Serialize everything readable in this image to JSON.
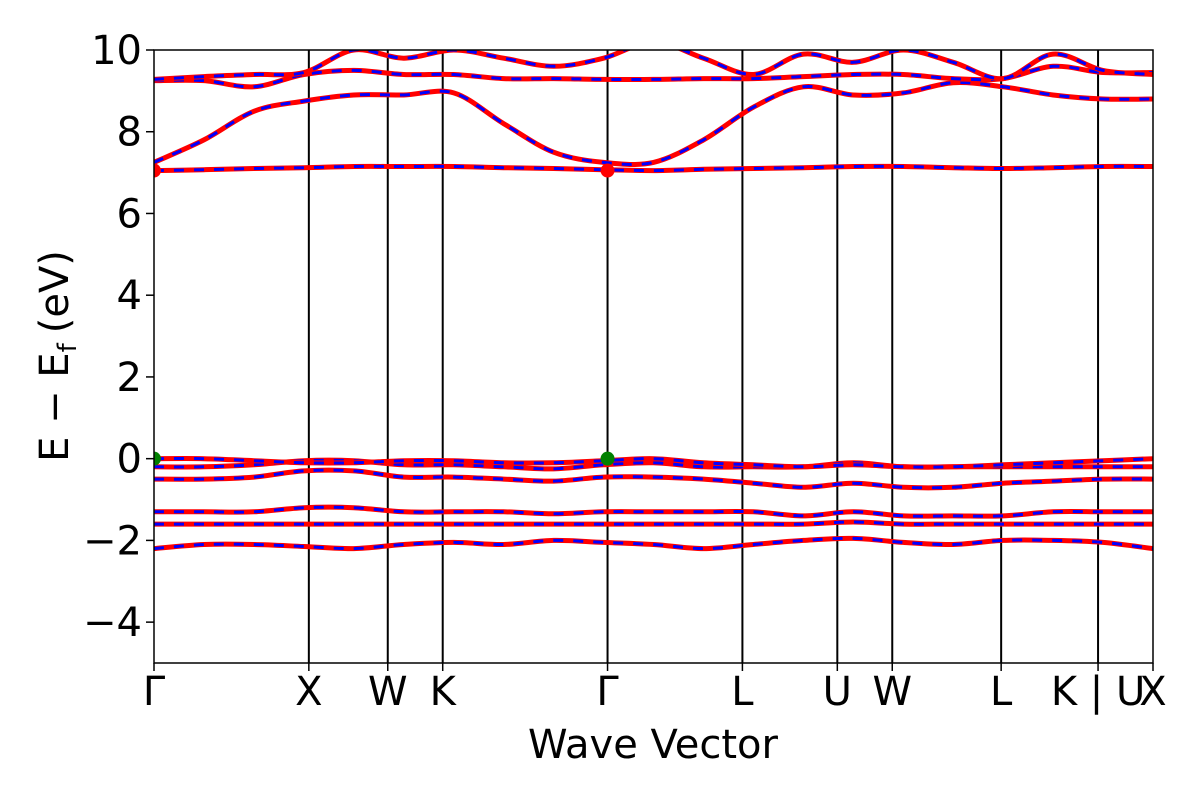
{
  "chart_data": {
    "type": "line",
    "title": "",
    "xlabel": "Wave Vector",
    "ylabel": {
      "main": "E − E",
      "sub": "f",
      "unit": "(eV)"
    },
    "ylim": [
      -5,
      10
    ],
    "yticks": [
      -4,
      -2,
      0,
      2,
      4,
      6,
      8,
      10
    ],
    "ytick_labels": [
      "−4",
      "−2",
      "0",
      "2",
      "4",
      "6",
      "8",
      "10"
    ],
    "xlim": [
      0,
      1
    ],
    "kpoints": [
      {
        "x": 0.0,
        "label": "Γ"
      },
      {
        "x": 0.155,
        "label": "X"
      },
      {
        "x": 0.234,
        "label": "W"
      },
      {
        "x": 0.289,
        "label": "K"
      },
      {
        "x": 0.454,
        "label": "Γ"
      },
      {
        "x": 0.589,
        "label": "L"
      },
      {
        "x": 0.684,
        "label": "U"
      },
      {
        "x": 0.739,
        "label": "W"
      },
      {
        "x": 0.848,
        "label": "L"
      },
      {
        "x": 0.945,
        "label": "K | U"
      },
      {
        "x": 1.0,
        "label": "X"
      }
    ],
    "colors": {
      "band_solid": "#ff0000",
      "band_dashed": "#0000ff",
      "vbm": "#008000",
      "cbm": "#ff0000"
    },
    "series": [
      {
        "values": [
          -2.2,
          -2.1,
          -2.1,
          -2.15,
          -2.2,
          -2.1,
          -2.05,
          -2.1,
          -2.0,
          -2.05,
          -2.1,
          -2.2,
          -2.1,
          -2.0,
          -1.95,
          -2.05,
          -2.1,
          -2.0,
          -2.0,
          -2.05,
          -2.2
        ]
      },
      {
        "values": [
          -1.6,
          -1.6,
          -1.6,
          -1.6,
          -1.6,
          -1.6,
          -1.6,
          -1.6,
          -1.6,
          -1.6,
          -1.6,
          -1.6,
          -1.6,
          -1.6,
          -1.55,
          -1.6,
          -1.6,
          -1.6,
          -1.6,
          -1.6,
          -1.6
        ]
      },
      {
        "values": [
          -1.3,
          -1.3,
          -1.3,
          -1.2,
          -1.2,
          -1.3,
          -1.3,
          -1.3,
          -1.35,
          -1.3,
          -1.3,
          -1.3,
          -1.3,
          -1.4,
          -1.3,
          -1.4,
          -1.4,
          -1.4,
          -1.3,
          -1.3,
          -1.3
        ]
      },
      {
        "values": [
          -0.5,
          -0.5,
          -0.45,
          -0.3,
          -0.3,
          -0.45,
          -0.45,
          -0.5,
          -0.55,
          -0.45,
          -0.45,
          -0.5,
          -0.6,
          -0.7,
          -0.6,
          -0.7,
          -0.7,
          -0.6,
          -0.55,
          -0.5,
          -0.5
        ]
      },
      {
        "values": [
          -0.2,
          -0.2,
          -0.15,
          -0.05,
          -0.05,
          -0.15,
          -0.15,
          -0.2,
          -0.25,
          -0.15,
          -0.1,
          -0.2,
          -0.2,
          -0.2,
          -0.1,
          -0.2,
          -0.2,
          -0.2,
          -0.2,
          -0.2,
          -0.2
        ]
      },
      {
        "values": [
          0.0,
          0.0,
          -0.05,
          -0.1,
          -0.1,
          -0.05,
          -0.05,
          -0.1,
          -0.1,
          -0.05,
          0.0,
          -0.1,
          -0.15,
          -0.2,
          -0.15,
          -0.2,
          -0.2,
          -0.15,
          -0.1,
          -0.05,
          0.0
        ]
      },
      {
        "values": [
          7.05,
          7.07,
          7.1,
          7.12,
          7.15,
          7.15,
          7.15,
          7.12,
          7.1,
          7.07,
          7.05,
          7.08,
          7.1,
          7.12,
          7.15,
          7.15,
          7.12,
          7.1,
          7.12,
          7.15,
          7.15
        ]
      },
      {
        "values": [
          7.25,
          7.8,
          8.5,
          8.75,
          8.9,
          8.9,
          8.95,
          8.2,
          7.5,
          7.25,
          7.25,
          7.8,
          8.6,
          9.1,
          8.9,
          8.95,
          9.2,
          9.1,
          8.9,
          8.8,
          8.8
        ]
      },
      {
        "values": [
          9.25,
          9.25,
          9.1,
          9.4,
          9.5,
          9.4,
          9.4,
          9.3,
          9.3,
          9.28,
          9.28,
          9.3,
          9.3,
          9.35,
          9.4,
          9.4,
          9.3,
          9.3,
          9.6,
          9.45,
          9.45
        ]
      },
      {
        "values": [
          9.28,
          9.35,
          9.4,
          9.45,
          10.0,
          9.8,
          10.0,
          9.8,
          9.6,
          9.8,
          10.2,
          9.8,
          9.4,
          9.9,
          9.7,
          10.0,
          9.7,
          9.3,
          9.9,
          9.5,
          9.4
        ]
      }
    ],
    "markers": [
      {
        "x": 0.0,
        "y": 0.0,
        "kind": "vbm"
      },
      {
        "x": 0.454,
        "y": 0.0,
        "kind": "vbm"
      },
      {
        "x": 0.0,
        "y": 7.05,
        "kind": "cbm"
      },
      {
        "x": 0.454,
        "y": 7.05,
        "kind": "cbm"
      }
    ]
  }
}
